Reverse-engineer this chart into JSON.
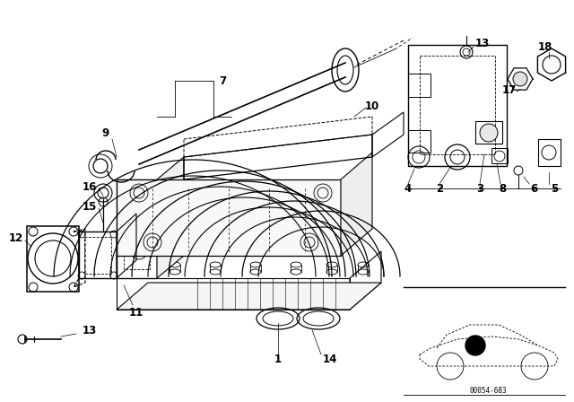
{
  "background_color": "#ffffff",
  "line_color": "#000000",
  "fig_width": 6.4,
  "fig_height": 4.48,
  "dpi": 100,
  "diagram_id": "00054-683"
}
